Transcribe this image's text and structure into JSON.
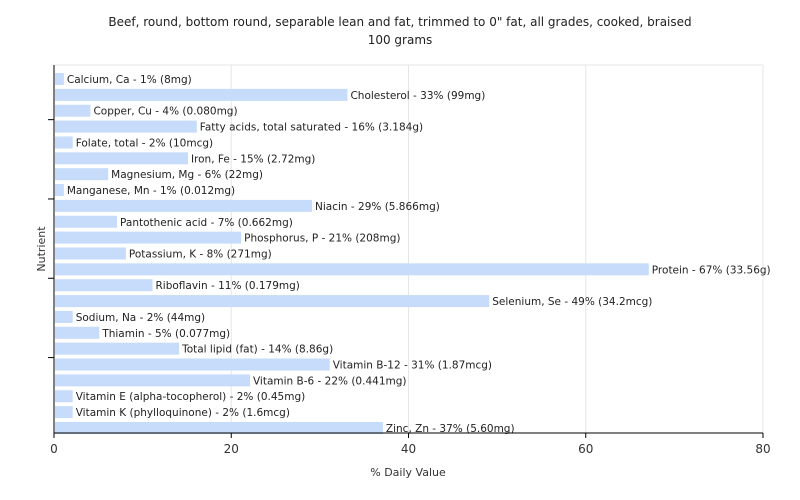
{
  "chart_data": {
    "type": "bar",
    "orientation": "horizontal",
    "title": "Beef, round, bottom round, separable lean and fat, trimmed to 0\" fat, all grades, cooked, braised",
    "subtitle": "100 grams",
    "xlabel": "% Daily Value",
    "ylabel": "Nutrient",
    "xlim": [
      0,
      80
    ],
    "xticks": [
      0,
      20,
      40,
      60,
      80
    ],
    "grid": true,
    "bar_color": "#c6dcfa",
    "categories": [
      "Calcium, Ca",
      "Cholesterol",
      "Copper, Cu",
      "Fatty acids, total saturated",
      "Folate, total",
      "Iron, Fe",
      "Magnesium, Mg",
      "Manganese, Mn",
      "Niacin",
      "Pantothenic acid",
      "Phosphorus, P",
      "Potassium, K",
      "Protein",
      "Riboflavin",
      "Selenium, Se",
      "Sodium, Na",
      "Thiamin",
      "Total lipid (fat)",
      "Vitamin B-12",
      "Vitamin B-6",
      "Vitamin E (alpha-tocopherol)",
      "Vitamin K (phylloquinone)",
      "Zinc, Zn"
    ],
    "values": [
      1,
      33,
      4,
      16,
      2,
      15,
      6,
      1,
      29,
      7,
      21,
      8,
      67,
      11,
      49,
      2,
      5,
      14,
      31,
      22,
      2,
      2,
      37
    ],
    "labels": [
      "Calcium, Ca - 1% (8mg)",
      "Cholesterol - 33% (99mg)",
      "Copper, Cu - 4% (0.080mg)",
      "Fatty acids, total saturated - 16% (3.184g)",
      "Folate, total - 2% (10mcg)",
      "Iron, Fe - 15% (2.72mg)",
      "Magnesium, Mg - 6% (22mg)",
      "Manganese, Mn - 1% (0.012mg)",
      "Niacin - 29% (5.866mg)",
      "Pantothenic acid - 7% (0.662mg)",
      "Phosphorus, P - 21% (208mg)",
      "Potassium, K - 8% (271mg)",
      "Protein - 67% (33.56g)",
      "Riboflavin - 11% (0.179mg)",
      "Selenium, Se - 49% (34.2mcg)",
      "Sodium, Na - 2% (44mg)",
      "Thiamin - 5% (0.077mg)",
      "Total lipid (fat) - 14% (8.86g)",
      "Vitamin B-12 - 31% (1.87mcg)",
      "Vitamin B-6 - 22% (0.441mg)",
      "Vitamin E (alpha-tocopherol) - 2% (0.45mg)",
      "Vitamin K (phylloquinone) - 2% (1.6mcg)",
      "Zinc, Zn - 37% (5.60mg)"
    ]
  }
}
